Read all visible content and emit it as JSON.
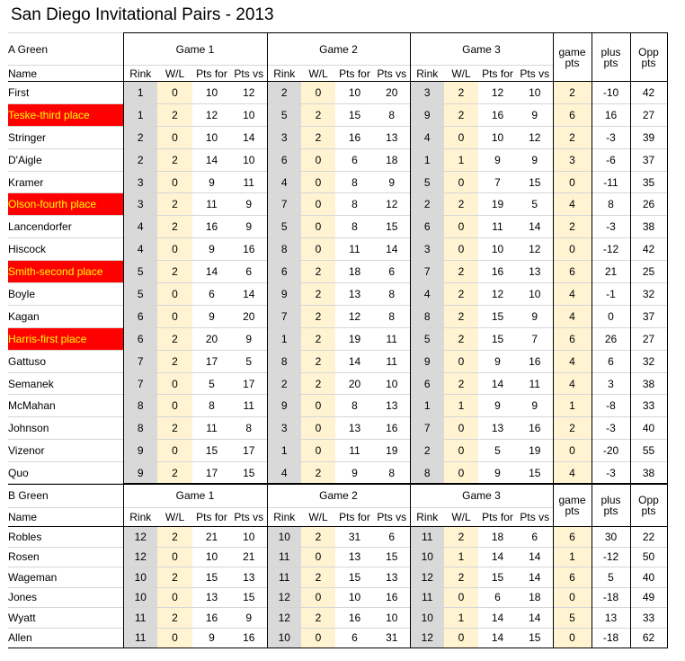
{
  "title": "San Diego Invitational Pairs - 2013",
  "headers": {
    "name": "Name",
    "game_labels": [
      "Game 1",
      "Game 2",
      "Game 3"
    ],
    "sub": [
      "Rink",
      "W/L",
      "Pts for",
      "Pts vs"
    ],
    "game_pts": [
      "game",
      "pts"
    ],
    "plus_pts": [
      "plus",
      "pts"
    ],
    "opp_pts": [
      "Opp",
      "pts"
    ]
  },
  "highlight": {
    "background": "#ff0000",
    "text": "#ffff00"
  },
  "sections": [
    {
      "name": "A Green",
      "rows": [
        {
          "name": "First",
          "hl": false,
          "g": [
            [
              "1",
              "0",
              "10",
              "12"
            ],
            [
              "2",
              "0",
              "10",
              "20"
            ],
            [
              "3",
              "2",
              "12",
              "10"
            ]
          ],
          "gp": "2",
          "plus": "-10",
          "opp": "42"
        },
        {
          "name": "Teske-third place",
          "hl": true,
          "g": [
            [
              "1",
              "2",
              "12",
              "10"
            ],
            [
              "5",
              "2",
              "15",
              "8"
            ],
            [
              "9",
              "2",
              "16",
              "9"
            ]
          ],
          "gp": "6",
          "plus": "16",
          "opp": "27"
        },
        {
          "name": "Stringer",
          "hl": false,
          "g": [
            [
              "2",
              "0",
              "10",
              "14"
            ],
            [
              "3",
              "2",
              "16",
              "13"
            ],
            [
              "4",
              "0",
              "10",
              "12"
            ]
          ],
          "gp": "2",
          "plus": "-3",
          "opp": "39"
        },
        {
          "name": "D'Aigle",
          "hl": false,
          "g": [
            [
              "2",
              "2",
              "14",
              "10"
            ],
            [
              "6",
              "0",
              "6",
              "18"
            ],
            [
              "1",
              "1",
              "9",
              "9"
            ]
          ],
          "gp": "3",
          "plus": "-6",
          "opp": "37"
        },
        {
          "name": "Kramer",
          "hl": false,
          "g": [
            [
              "3",
              "0",
              "9",
              "11"
            ],
            [
              "4",
              "0",
              "8",
              "9"
            ],
            [
              "5",
              "0",
              "7",
              "15"
            ]
          ],
          "gp": "0",
          "plus": "-11",
          "opp": "35"
        },
        {
          "name": "Olson-fourth place",
          "hl": true,
          "g": [
            [
              "3",
              "2",
              "11",
              "9"
            ],
            [
              "7",
              "0",
              "8",
              "12"
            ],
            [
              "2",
              "2",
              "19",
              "5"
            ]
          ],
          "gp": "4",
          "plus": "8",
          "opp": "26"
        },
        {
          "name": "Lancendorfer",
          "hl": false,
          "g": [
            [
              "4",
              "2",
              "16",
              "9"
            ],
            [
              "5",
              "0",
              "8",
              "15"
            ],
            [
              "6",
              "0",
              "11",
              "14"
            ]
          ],
          "gp": "2",
          "plus": "-3",
          "opp": "38"
        },
        {
          "name": "Hiscock",
          "hl": false,
          "g": [
            [
              "4",
              "0",
              "9",
              "16"
            ],
            [
              "8",
              "0",
              "11",
              "14"
            ],
            [
              "3",
              "0",
              "10",
              "12"
            ]
          ],
          "gp": "0",
          "plus": "-12",
          "opp": "42"
        },
        {
          "name": "Smith-second place",
          "hl": true,
          "g": [
            [
              "5",
              "2",
              "14",
              "6"
            ],
            [
              "6",
              "2",
              "18",
              "6"
            ],
            [
              "7",
              "2",
              "16",
              "13"
            ]
          ],
          "gp": "6",
          "plus": "21",
          "opp": "25"
        },
        {
          "name": "Boyle",
          "hl": false,
          "g": [
            [
              "5",
              "0",
              "6",
              "14"
            ],
            [
              "9",
              "2",
              "13",
              "8"
            ],
            [
              "4",
              "2",
              "12",
              "10"
            ]
          ],
          "gp": "4",
          "plus": "-1",
          "opp": "32"
        },
        {
          "name": "Kagan",
          "hl": false,
          "g": [
            [
              "6",
              "0",
              "9",
              "20"
            ],
            [
              "7",
              "2",
              "12",
              "8"
            ],
            [
              "8",
              "2",
              "15",
              "9"
            ]
          ],
          "gp": "4",
          "plus": "0",
          "opp": "37"
        },
        {
          "name": "Harris-first place",
          "hl": true,
          "g": [
            [
              "6",
              "2",
              "20",
              "9"
            ],
            [
              "1",
              "2",
              "19",
              "11"
            ],
            [
              "5",
              "2",
              "15",
              "7"
            ]
          ],
          "gp": "6",
          "plus": "26",
          "opp": "27"
        },
        {
          "name": "Gattuso",
          "hl": false,
          "g": [
            [
              "7",
              "2",
              "17",
              "5"
            ],
            [
              "8",
              "2",
              "14",
              "11"
            ],
            [
              "9",
              "0",
              "9",
              "16"
            ]
          ],
          "gp": "4",
          "plus": "6",
          "opp": "32"
        },
        {
          "name": "Semanek",
          "hl": false,
          "g": [
            [
              "7",
              "0",
              "5",
              "17"
            ],
            [
              "2",
              "2",
              "20",
              "10"
            ],
            [
              "6",
              "2",
              "14",
              "11"
            ]
          ],
          "gp": "4",
          "plus": "3",
          "opp": "38"
        },
        {
          "name": "McMahan",
          "hl": false,
          "g": [
            [
              "8",
              "0",
              "8",
              "11"
            ],
            [
              "9",
              "0",
              "8",
              "13"
            ],
            [
              "1",
              "1",
              "9",
              "9"
            ]
          ],
          "gp": "1",
          "plus": "-8",
          "opp": "33"
        },
        {
          "name": "Johnson",
          "hl": false,
          "g": [
            [
              "8",
              "2",
              "11",
              "8"
            ],
            [
              "3",
              "0",
              "13",
              "16"
            ],
            [
              "7",
              "0",
              "13",
              "16"
            ]
          ],
          "gp": "2",
          "plus": "-3",
          "opp": "40"
        },
        {
          "name": "Vizenor",
          "hl": false,
          "g": [
            [
              "9",
              "0",
              "15",
              "17"
            ],
            [
              "1",
              "0",
              "11",
              "19"
            ],
            [
              "2",
              "0",
              "5",
              "19"
            ]
          ],
          "gp": "0",
          "plus": "-20",
          "opp": "55"
        },
        {
          "name": "Quo",
          "hl": false,
          "g": [
            [
              "9",
              "2",
              "17",
              "15"
            ],
            [
              "4",
              "2",
              "9",
              "8"
            ],
            [
              "8",
              "0",
              "9",
              "15"
            ]
          ],
          "gp": "4",
          "plus": "-3",
          "opp": "38"
        }
      ]
    },
    {
      "name": "B Green",
      "rows": [
        {
          "name": "Robles",
          "hl": false,
          "g": [
            [
              "12",
              "2",
              "21",
              "10"
            ],
            [
              "10",
              "2",
              "31",
              "6"
            ],
            [
              "11",
              "2",
              "18",
              "6"
            ]
          ],
          "gp": "6",
          "plus": "30",
          "opp": "22"
        },
        {
          "name": "Rosen",
          "hl": false,
          "g": [
            [
              "12",
              "0",
              "10",
              "21"
            ],
            [
              "11",
              "0",
              "13",
              "15"
            ],
            [
              "10",
              "1",
              "14",
              "14"
            ]
          ],
          "gp": "1",
          "plus": "-12",
          "opp": "50"
        },
        {
          "name": "Wageman",
          "hl": false,
          "g": [
            [
              "10",
              "2",
              "15",
              "13"
            ],
            [
              "11",
              "2",
              "15",
              "13"
            ],
            [
              "12",
              "2",
              "15",
              "14"
            ]
          ],
          "gp": "6",
          "plus": "5",
          "opp": "40"
        },
        {
          "name": "Jones",
          "hl": false,
          "g": [
            [
              "10",
              "0",
              "13",
              "15"
            ],
            [
              "12",
              "0",
              "10",
              "16"
            ],
            [
              "11",
              "0",
              "6",
              "18"
            ]
          ],
          "gp": "0",
          "plus": "-18",
          "opp": "49"
        },
        {
          "name": "Wyatt",
          "hl": false,
          "g": [
            [
              "11",
              "2",
              "16",
              "9"
            ],
            [
              "12",
              "2",
              "16",
              "10"
            ],
            [
              "10",
              "1",
              "14",
              "14"
            ]
          ],
          "gp": "5",
          "plus": "13",
          "opp": "33"
        },
        {
          "name": "Allen",
          "hl": false,
          "g": [
            [
              "11",
              "0",
              "9",
              "16"
            ],
            [
              "10",
              "0",
              "6",
              "31"
            ],
            [
              "12",
              "0",
              "14",
              "15"
            ]
          ],
          "gp": "0",
          "plus": "-18",
          "opp": "62"
        }
      ]
    }
  ]
}
